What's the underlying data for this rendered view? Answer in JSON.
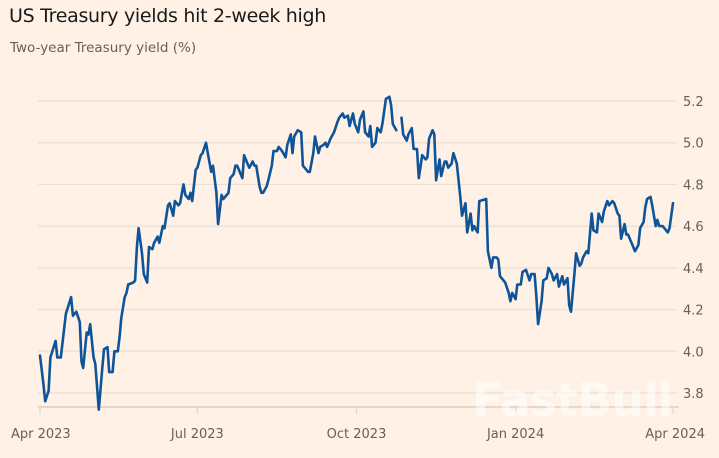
{
  "header": {
    "title": "US Treasury yields hit 2-week high",
    "subtitle": "Two-year Treasury yield (%)"
  },
  "watermark": "FastBull",
  "colors": {
    "background": "#fff1e5",
    "line": "#0f5499",
    "grid": "#e9dfd6"
  },
  "chart_data": {
    "type": "line",
    "title": "US Treasury yields hit 2-week high",
    "subtitle": "Two-year Treasury yield (%)",
    "xlabel": "",
    "ylabel": "",
    "ylim": [
      3.73,
      5.2
    ],
    "xlim": [
      "2023-04-01",
      "2024-04-01"
    ],
    "grid": true,
    "y_axis_position": "right",
    "yticks": [
      5.2,
      5.0,
      4.8,
      4.6,
      4.4,
      4.2,
      4.0,
      3.8
    ],
    "ytick_labels": [
      "5.2",
      "5.0",
      "4.8",
      "4.6",
      "4.4",
      "4.2",
      "4.0",
      "3.8"
    ],
    "xticks": [
      "2023-04-01",
      "2023-07-01",
      "2023-10-01",
      "2024-01-01",
      "2024-04-01"
    ],
    "xtick_labels": [
      "Apr 2023",
      "Jul 2023",
      "Oct 2023",
      "Jan 2024",
      "Apr 2024"
    ],
    "series": [
      {
        "x": [
          "2023-04-01",
          "2023-04-03",
          "2023-04-04",
          "2023-04-06",
          "2023-04-07",
          "2023-04-10",
          "2023-04-11",
          "2023-04-13",
          "2023-04-16",
          "2023-04-19",
          "2023-04-20",
          "2023-04-22",
          "2023-04-24",
          "2023-04-25",
          "2023-04-26",
          "2023-04-28",
          "2023-04-29",
          "2023-04-30",
          "2023-05-02",
          "2023-05-03",
          "2023-05-05",
          "2023-05-07",
          "2023-05-08",
          "2023-05-10",
          "2023-05-11",
          "2023-05-13",
          "2023-05-14",
          "2023-05-16",
          "2023-05-17",
          "2023-05-18",
          "2023-05-20",
          "2023-05-21",
          "2023-05-22",
          "2023-05-25",
          "2023-05-26",
          "2023-05-27",
          "2023-05-28",
          "2023-05-30",
          "2023-05-31",
          "2023-06-02",
          "2023-06-03",
          "2023-06-05",
          "2023-06-06",
          "2023-06-08",
          "2023-06-09",
          "2023-06-11",
          "2023-06-12",
          "2023-06-14",
          "2023-06-15",
          "2023-06-17",
          "2023-06-18",
          "2023-06-20",
          "2023-06-21",
          "2023-06-23",
          "2023-06-24",
          "2023-06-26",
          "2023-06-27",
          "2023-06-28",
          "2023-06-30",
          "2023-07-01",
          "2023-07-03",
          "2023-07-04",
          "2023-07-06",
          "2023-07-07",
          "2023-07-09",
          "2023-07-10",
          "2023-07-12",
          "2023-07-13",
          "2023-07-15",
          "2023-07-16",
          "2023-07-18",
          "2023-07-19",
          "2023-07-20",
          "2023-07-22",
          "2023-07-23",
          "2023-07-24",
          "2023-07-27",
          "2023-07-28",
          "2023-07-30",
          "2023-07-31",
          "2023-08-02",
          "2023-08-03",
          "2023-08-04",
          "2023-08-06",
          "2023-08-07",
          "2023-08-08",
          "2023-08-10",
          "2023-08-11",
          "2023-08-13",
          "2023-08-14",
          "2023-08-16",
          "2023-08-17",
          "2023-08-19",
          "2023-08-21",
          "2023-08-22",
          "2023-08-24",
          "2023-08-25",
          "2023-08-26",
          "2023-08-28",
          "2023-08-30",
          "2023-08-31",
          "2023-09-01",
          "2023-09-03",
          "2023-09-04",
          "2023-09-06",
          "2023-09-07",
          "2023-09-09",
          "2023-09-10",
          "2023-09-12",
          "2023-09-13",
          "2023-09-14",
          "2023-09-16",
          "2023-09-18",
          "2023-09-20",
          "2023-09-21",
          "2023-09-23",
          "2023-09-24",
          "2023-09-26",
          "2023-09-27",
          "2023-09-29",
          "2023-09-30",
          "2023-10-02",
          "2023-10-03",
          "2023-10-05",
          "2023-10-06",
          "2023-10-08",
          "2023-10-09",
          "2023-10-10",
          "2023-10-12",
          "2023-10-13",
          "2023-10-15",
          "2023-10-16",
          "2023-10-18",
          "2023-10-20",
          "2023-10-21",
          "2023-10-22",
          "2023-10-24",
          "2023-10-26",
          "2023-10-27",
          "2023-10-28",
          "2023-10-30",
          "2023-10-31",
          "2023-11-02",
          "2023-11-03",
          "2023-11-05",
          "2023-11-06",
          "2023-11-08",
          "2023-11-10",
          "2023-11-11",
          "2023-11-12",
          "2023-11-14",
          "2023-11-15",
          "2023-11-16",
          "2023-11-18",
          "2023-11-19",
          "2023-11-21",
          "2023-11-22",
          "2023-11-23",
          "2023-11-25",
          "2023-11-26",
          "2023-11-28",
          "2023-11-30",
          "2023-12-01",
          "2023-12-03",
          "2023-12-04",
          "2023-12-06",
          "2023-12-07",
          "2023-12-08",
          "2023-12-10",
          "2023-12-11",
          "2023-12-15",
          "2023-12-16",
          "2023-12-18",
          "2023-12-19",
          "2023-12-21",
          "2023-12-22",
          "2023-12-23",
          "2023-12-25",
          "2023-12-26",
          "2023-12-28",
          "2023-12-29",
          "2023-12-30",
          "2024-01-01",
          "2024-01-02",
          "2024-01-04",
          "2024-01-05",
          "2024-01-07",
          "2024-01-09",
          "2024-01-10",
          "2024-01-12",
          "2024-01-13",
          "2024-01-14",
          "2024-01-16",
          "2024-01-17",
          "2024-01-19",
          "2024-01-20",
          "2024-01-22",
          "2024-01-23",
          "2024-01-25",
          "2024-01-26",
          "2024-01-28",
          "2024-01-29",
          "2024-01-31",
          "2024-02-01",
          "2024-02-02",
          "2024-02-04",
          "2024-02-05",
          "2024-02-07",
          "2024-02-08",
          "2024-02-09",
          "2024-02-11",
          "2024-02-12",
          "2024-02-14",
          "2024-02-15",
          "2024-02-17",
          "2024-02-18",
          "2024-02-20",
          "2024-02-21",
          "2024-02-23",
          "2024-02-24",
          "2024-02-26",
          "2024-02-27",
          "2024-02-29",
          "2024-03-01",
          "2024-03-02",
          "2024-03-04",
          "2024-03-05",
          "2024-03-06",
          "2024-03-08",
          "2024-03-10",
          "2024-03-12",
          "2024-03-13",
          "2024-03-15",
          "2024-03-16",
          "2024-03-17",
          "2024-03-19",
          "2024-03-20",
          "2024-03-22",
          "2024-03-23",
          "2024-03-24",
          "2024-03-26",
          "2024-03-27",
          "2024-03-29",
          "2024-03-30",
          "2024-04-01"
        ],
        "y": [
          3.98,
          3.84,
          3.76,
          3.81,
          3.97,
          4.05,
          3.97,
          3.97,
          4.18,
          4.26,
          4.17,
          4.19,
          4.14,
          3.95,
          3.92,
          4.09,
          4.08,
          4.13,
          3.97,
          3.94,
          3.72,
          3.92,
          4.01,
          4.02,
          3.9,
          3.9,
          4.0,
          4.0,
          4.07,
          4.16,
          4.26,
          4.28,
          4.32,
          4.33,
          4.34,
          4.5,
          4.59,
          4.47,
          4.37,
          4.33,
          4.5,
          4.49,
          4.52,
          4.55,
          4.52,
          4.6,
          4.59,
          4.7,
          4.71,
          4.65,
          4.72,
          4.7,
          4.71,
          4.8,
          4.75,
          4.73,
          4.76,
          4.72,
          4.87,
          4.88,
          4.94,
          4.95,
          5.0,
          4.95,
          4.86,
          4.89,
          4.76,
          4.61,
          4.75,
          4.73,
          4.75,
          4.76,
          4.83,
          4.85,
          4.89,
          4.89,
          4.83,
          4.94,
          4.9,
          4.88,
          4.91,
          4.89,
          4.89,
          4.79,
          4.76,
          4.76,
          4.79,
          4.82,
          4.89,
          4.96,
          4.96,
          4.98,
          4.96,
          4.93,
          4.99,
          5.04,
          4.95,
          5.03,
          5.06,
          5.05,
          4.89,
          4.88,
          4.86,
          4.86,
          4.95,
          5.03,
          4.95,
          4.98,
          4.99,
          5.0,
          4.98,
          5.02,
          5.05,
          5.1,
          5.12,
          5.14,
          5.12,
          5.13,
          5.08,
          5.14,
          5.09,
          5.05,
          5.11,
          5.15,
          5.05,
          5.03,
          5.08,
          4.98,
          5.0,
          5.07,
          5.05,
          5.09,
          5.21,
          5.22,
          5.18,
          5.09,
          5.06,
          null,
          5.12,
          5.04,
          5.01,
          5.04,
          5.07,
          4.97,
          4.97,
          4.83,
          4.94,
          4.92,
          4.93,
          5.02,
          5.06,
          5.04,
          4.82,
          4.92,
          4.84,
          4.91,
          4.91,
          4.88,
          4.9,
          4.95,
          4.9,
          4.74,
          4.65,
          4.71,
          4.57,
          4.66,
          4.58,
          4.6,
          4.57,
          4.72,
          4.73,
          4.48,
          4.4,
          4.45,
          4.45,
          4.44,
          4.36,
          4.34,
          4.33,
          4.28,
          4.24,
          4.28,
          4.25,
          4.32,
          4.32,
          4.38,
          4.39,
          4.34,
          4.37,
          4.37,
          4.26,
          4.13,
          4.24,
          4.34,
          4.35,
          4.4,
          4.37,
          4.34,
          4.37,
          4.31,
          4.36,
          4.32,
          4.35,
          4.22,
          4.19,
          4.37,
          4.47,
          4.41,
          4.42,
          4.45,
          4.48,
          4.47,
          4.66,
          4.58,
          4.57,
          4.66,
          4.62,
          4.67,
          4.72,
          4.7,
          4.72,
          4.71,
          4.66,
          4.65,
          4.54,
          4.61,
          4.56,
          4.56,
          4.52,
          4.48,
          4.51,
          4.59,
          4.62,
          4.69,
          4.73,
          4.74,
          4.7,
          4.6,
          4.63,
          4.6,
          4.6,
          4.59,
          4.57,
          4.59,
          4.71
        ]
      }
    ]
  }
}
